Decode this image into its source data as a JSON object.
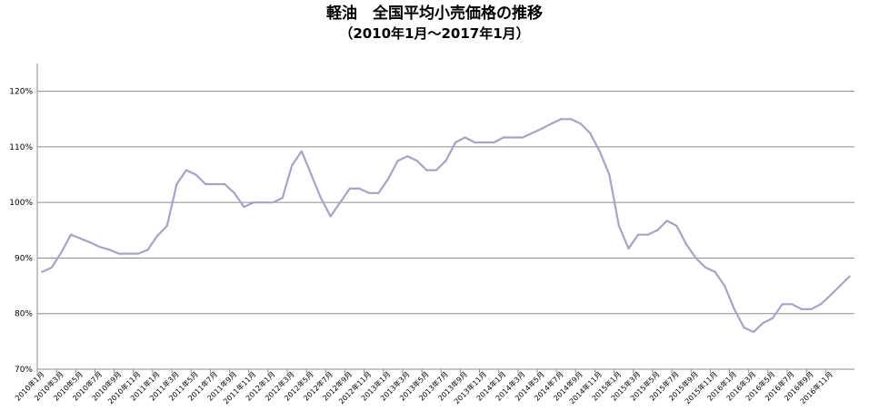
{
  "chart_data": {
    "type": "line",
    "title": "軽油　全国平均小売価格の推移",
    "subtitle": "（2010年1月～2017年1月）",
    "xlabel": "",
    "ylabel": "",
    "ylim": [
      70,
      125
    ],
    "yticks": [
      "70%",
      "80%",
      "90%",
      "100%",
      "110%",
      "120%"
    ],
    "ytick_values": [
      70,
      80,
      90,
      100,
      110,
      120
    ],
    "grid": true,
    "legend": "none",
    "line_color": "#a8a3c6",
    "grid_color": "#8c8c8c",
    "x_tick_labels": [
      "2010年1月",
      "2010年3月",
      "2010年5月",
      "2010年7月",
      "2010年9月",
      "2010年11月",
      "2011年1月",
      "2011年3月",
      "2011年5月",
      "2011年7月",
      "2011年9月",
      "2011年11月",
      "2012年1月",
      "2012年3月",
      "2012年5月",
      "2012年7月",
      "2012年9月",
      "2012年11月",
      "2013年1月",
      "2013年3月",
      "2013年5月",
      "2013年7月",
      "2013年9月",
      "2013年11月",
      "2014年1月",
      "2014年3月",
      "2014年5月",
      "2014年7月",
      "2014年9月",
      "2014年11月",
      "2015年1月",
      "2015年3月",
      "2015年5月",
      "2015年7月",
      "2015年9月",
      "2015年11月",
      "2016年1月",
      "2016年3月",
      "2016年5月",
      "2016年7月",
      "2016年9月",
      "2016年11月"
    ],
    "series": [
      {
        "values": [
          87.5,
          88.3,
          91.0,
          94.2,
          93.5,
          92.8,
          92.0,
          91.5,
          90.8,
          90.8,
          90.8,
          91.5,
          94.0,
          95.8,
          103.3,
          105.8,
          105.0,
          103.3,
          103.3,
          103.3,
          101.7,
          99.2,
          100.0,
          100.0,
          100.0,
          100.8,
          106.7,
          109.2,
          105.0,
          100.8,
          97.5,
          100.0,
          102.5,
          102.5,
          101.7,
          101.7,
          104.2,
          107.5,
          108.3,
          107.5,
          105.8,
          105.8,
          107.5,
          110.8,
          111.7,
          110.8,
          110.8,
          110.8,
          111.7,
          111.7,
          111.7,
          112.5,
          113.3,
          114.2,
          115.0,
          115.0,
          114.2,
          112.5,
          109.2,
          105.0,
          95.8,
          91.7,
          94.2,
          94.2,
          95.0,
          96.7,
          95.8,
          92.5,
          90.0,
          88.3,
          87.5,
          85.0,
          80.8,
          77.5,
          76.7,
          78.3,
          79.2,
          81.7,
          81.7,
          80.8,
          80.8,
          81.7,
          83.3,
          85.0,
          86.7
        ]
      }
    ]
  }
}
